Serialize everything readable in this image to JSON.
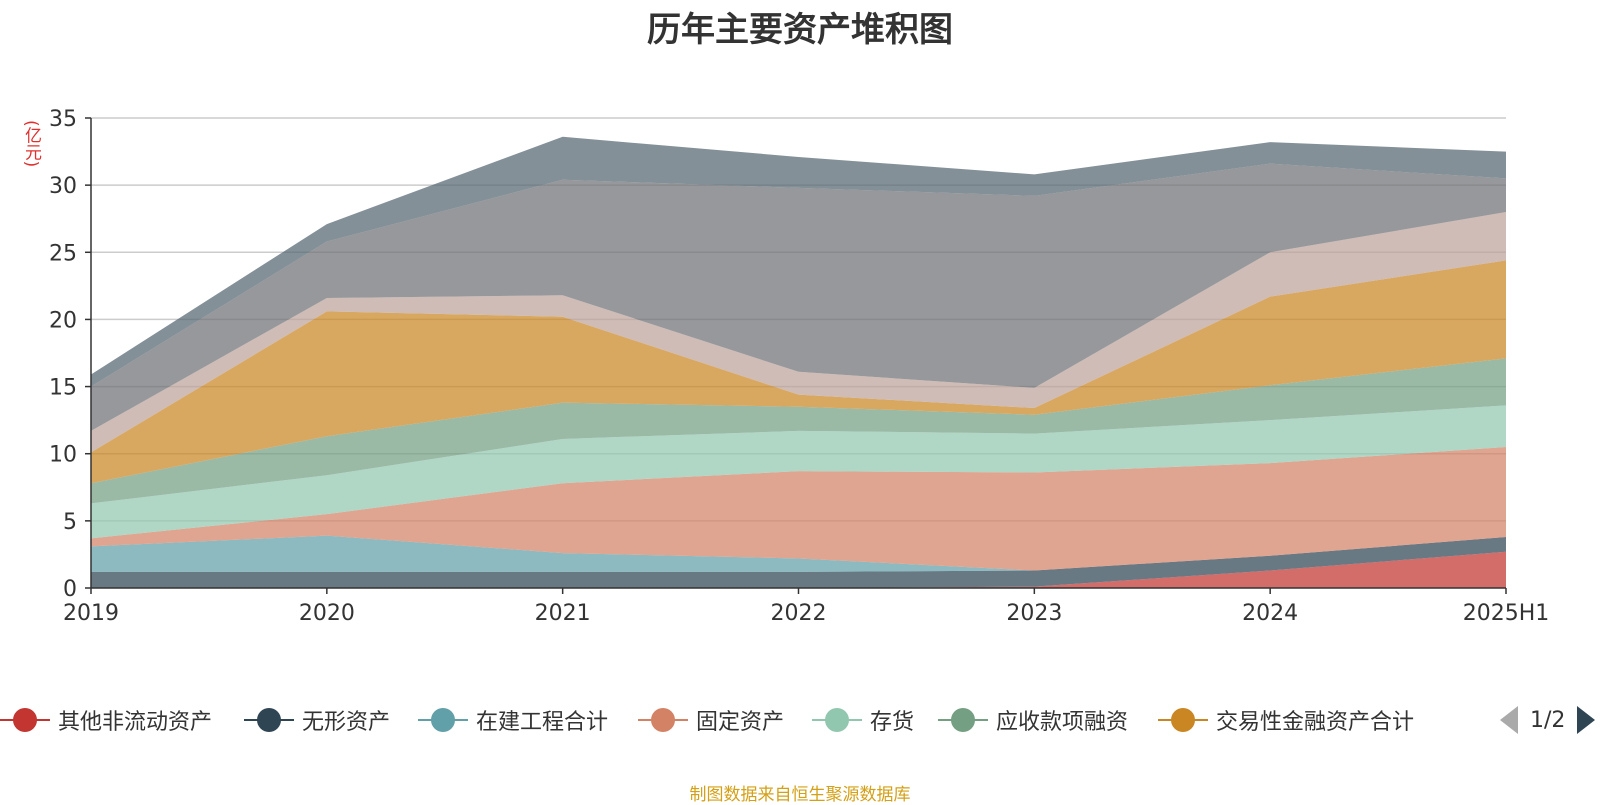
{
  "chart_data": {
    "type": "area",
    "stacked": true,
    "title": "历年主要资产堆积图",
    "ylabel": "(亿元)",
    "ylim": [
      0,
      35
    ],
    "yticks": [
      0,
      5,
      10,
      15,
      20,
      25,
      30,
      35
    ],
    "categories": [
      "2019",
      "2020",
      "2021",
      "2022",
      "2023",
      "2024",
      "2025H1"
    ],
    "grid": true,
    "legend_position": "bottom",
    "series": [
      {
        "name": "其他非流动资产",
        "color": "#c23531",
        "values": [
          0.0,
          0.0,
          0.0,
          0.0,
          0.1,
          1.3,
          2.7
        ]
      },
      {
        "name": "无形资产",
        "color": "#2f4554",
        "values": [
          1.2,
          1.2,
          1.2,
          1.2,
          1.2,
          1.1,
          1.1
        ]
      },
      {
        "name": "在建工程合计",
        "color": "#61a0a8",
        "values": [
          1.9,
          2.7,
          1.4,
          1.0,
          0.0,
          0.0,
          0.0
        ]
      },
      {
        "name": "固定资产",
        "color": "#d48265",
        "values": [
          0.6,
          1.6,
          5.2,
          6.5,
          7.3,
          6.9,
          6.7
        ]
      },
      {
        "name": "存货",
        "color": "#91c7ae",
        "values": [
          2.6,
          2.9,
          3.3,
          3.0,
          2.9,
          3.2,
          3.1
        ]
      },
      {
        "name": "应收款项融资",
        "color": "#749f83",
        "values": [
          1.5,
          2.9,
          2.7,
          1.8,
          1.4,
          2.6,
          3.5
        ]
      },
      {
        "name": "交易性金融资产合计",
        "color": "#ca8622",
        "values": [
          2.3,
          9.3,
          6.4,
          0.9,
          0.5,
          6.6,
          7.3
        ]
      },
      {
        "name": "",
        "color": "#bda29a",
        "values": [
          1.6,
          1.0,
          1.6,
          1.7,
          1.5,
          3.3,
          3.6
        ]
      },
      {
        "name": "",
        "color": "#6e7074",
        "values": [
          3.3,
          4.2,
          8.6,
          13.7,
          14.3,
          6.6,
          2.5
        ]
      },
      {
        "name": "",
        "color": "#546570",
        "values": [
          0.9,
          1.3,
          3.2,
          2.3,
          1.6,
          1.6,
          2.0
        ]
      }
    ],
    "legend_page": "1/2"
  },
  "source_note": "制图数据来自恒生聚源数据库"
}
